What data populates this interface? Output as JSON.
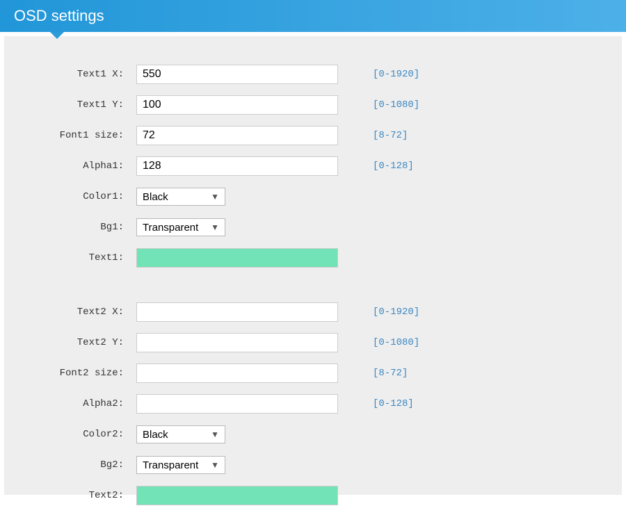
{
  "header": {
    "title": "OSD settings"
  },
  "colors": {
    "header_gradient_start": "#2196d8",
    "header_gradient_end": "#4db0e8",
    "panel_bg": "#eeeeee",
    "hint_text": "#3b88c3",
    "highlight_block": "#72e2b7",
    "input_border": "#cccccc",
    "select_border": "#b8b8b8"
  },
  "typography": {
    "header_fontsize": 22,
    "label_font": "Courier New",
    "label_fontsize": 14,
    "input_fontsize": 16,
    "hint_font": "Courier New",
    "hint_fontsize": 14
  },
  "group1": {
    "text_x": {
      "label": "Text1 X:",
      "value": "550",
      "hint": "[0-1920]"
    },
    "text_y": {
      "label": "Text1 Y:",
      "value": "100",
      "hint": "[0-1080]"
    },
    "font_size": {
      "label": "Font1 size:",
      "value": "72",
      "hint": "[8-72]"
    },
    "alpha": {
      "label": "Alpha1:",
      "value": "128",
      "hint": "[0-128]"
    },
    "color": {
      "label": "Color1:",
      "value": "Black"
    },
    "bg": {
      "label": "Bg1:",
      "value": "Transparent"
    },
    "text": {
      "label": "Text1:",
      "block_color": "#72e2b7"
    }
  },
  "group2": {
    "text_x": {
      "label": "Text2 X:",
      "value": "",
      "hint": "[0-1920]"
    },
    "text_y": {
      "label": "Text2 Y:",
      "value": "",
      "hint": "[0-1080]"
    },
    "font_size": {
      "label": "Font2 size:",
      "value": "",
      "hint": "[8-72]"
    },
    "alpha": {
      "label": "Alpha2:",
      "value": "",
      "hint": "[0-128]"
    },
    "color": {
      "label": "Color2:",
      "value": "Black"
    },
    "bg": {
      "label": "Bg2:",
      "value": "Transparent"
    },
    "text": {
      "label": "Text2:",
      "block_color": "#72e2b7"
    }
  }
}
